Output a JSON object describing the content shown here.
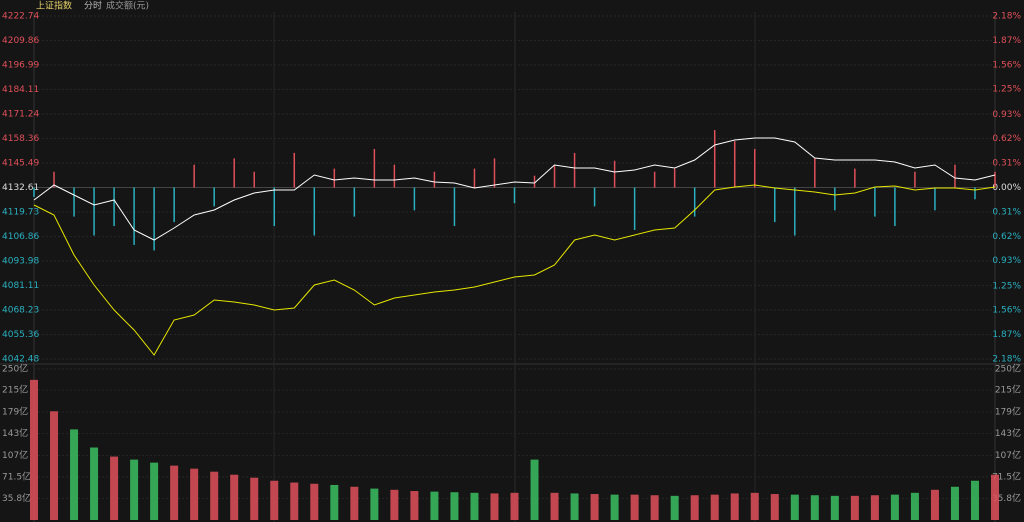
{
  "header": {
    "symbol": "上证指数",
    "period": "分时",
    "volume_label": "成交额(元)"
  },
  "chart_data": [
    {
      "type": "line",
      "ylim": [
        4042.48,
        4222.74
      ],
      "yticks": [
        4042.48,
        4055.36,
        4068.23,
        4081.11,
        4093.98,
        4106.86,
        4119.73,
        4132.61,
        4145.49,
        4158.36,
        4171.24,
        4184.11,
        4196.99,
        4209.86,
        4222.74
      ],
      "y2lim": [
        -2.18,
        2.18
      ],
      "y2ticks": [
        {
          "value": -2.18,
          "label": "2.18%"
        },
        {
          "value": -1.87,
          "label": "1.87%"
        },
        {
          "value": -1.56,
          "label": "1.56%"
        },
        {
          "value": -1.25,
          "label": "1.25%"
        },
        {
          "value": -0.93,
          "label": "0.93%"
        },
        {
          "value": -0.62,
          "label": "0.62%"
        },
        {
          "value": -0.31,
          "label": "0.31%"
        },
        {
          "value": 0,
          "label": "0.00%"
        },
        {
          "value": 0.31,
          "label": "0.31%"
        },
        {
          "value": 0.62,
          "label": "0.62%"
        },
        {
          "value": 0.93,
          "label": "0.93%"
        },
        {
          "value": 1.25,
          "label": "1.25%"
        },
        {
          "value": 1.56,
          "label": "1.56%"
        },
        {
          "value": 1.87,
          "label": "1.87%"
        },
        {
          "value": 2.18,
          "label": "2.18%"
        }
      ],
      "up_color": "#e0505a",
      "down_color": "#2ab0c0",
      "flat_color": "#dddddd",
      "series": [
        {
          "color": "#ffffff",
          "values": [
            4126.05,
            4133.93,
            4128.68,
            4123.42,
            4126.05,
            4110.29,
            4105.03,
            4111.34,
            4118.17,
            4120.8,
            4126.05,
            4129.73,
            4131.31,
            4131.31,
            4139.19,
            4136.56,
            4137.61,
            4136.56,
            4136.56,
            4137.61,
            4135.51,
            4134.98,
            4132.36,
            4133.93,
            4135.51,
            4134.98,
            4144.44,
            4142.87,
            4142.87,
            4140.76,
            4141.81,
            4144.44,
            4142.87,
            4147.07,
            4154.95,
            4157.58,
            4158.63,
            4158.63,
            4156.53,
            4148.12,
            4147.07,
            4147.07,
            4147.07,
            4146.02,
            4142.87,
            4144.44,
            4137.61,
            4136.56,
            4139.19
          ]
        },
        {
          "color": "#e6e600",
          "values": [
            4123.42,
            4118.17,
            4097.15,
            4081.38,
            4068.25,
            4057.74,
            4044.6,
            4062.99,
            4065.62,
            4073.5,
            4072.45,
            4070.87,
            4068.25,
            4069.3,
            4081.38,
            4084.01,
            4078.76,
            4070.87,
            4074.55,
            4076.13,
            4077.71,
            4078.76,
            4080.33,
            4082.96,
            4085.59,
            4086.64,
            4091.89,
            4105.03,
            4107.66,
            4105.03,
            4107.66,
            4110.29,
            4111.34,
            4120.8,
            4131.31,
            4132.88,
            4133.93,
            4132.36,
            4131.31,
            4130.25,
            4128.68,
            4129.73,
            4132.88,
            4133.41,
            4131.31,
            4132.36,
            4132.36,
            4131.31,
            4132.88
          ]
        },
        {
          "axis": "y2",
          "values": [
            -0.12,
            0.2,
            -0.37,
            -0.61,
            -0.49,
            -0.73,
            -0.8,
            -0.44,
            0.29,
            -0.24,
            0.37,
            0.2,
            -0.49,
            0.44,
            -0.61,
            0.24,
            -0.37,
            0.49,
            0.29,
            -0.29,
            0.2,
            -0.49,
            0.24,
            0.37,
            -0.2,
            0.15,
            0.29,
            0.44,
            -0.24,
            0.34,
            -0.54,
            0.2,
            0.24,
            -0.37,
            0.73,
            0.59,
            0.49,
            -0.44,
            -0.61,
            0.37,
            -0.29,
            0.24,
            -0.37,
            -0.49,
            0.2,
            -0.29,
            0.29,
            -0.15,
            0.2
          ]
        }
      ]
    },
    {
      "type": "bar",
      "ylim": [
        0,
        250
      ],
      "yticks": [
        {
          "value": 35.8,
          "label": "35.8亿"
        },
        {
          "value": 71.5,
          "label": "71.5亿"
        },
        {
          "value": 107,
          "label": "107亿"
        },
        {
          "value": 143,
          "label": "143亿"
        },
        {
          "value": 179,
          "label": "179亿"
        },
        {
          "value": 215,
          "label": "215亿"
        },
        {
          "value": 250,
          "label": "250亿"
        }
      ],
      "up_color": "#e0505a",
      "down_color": "#3ac060",
      "values": [
        232,
        180,
        150,
        120,
        105,
        100,
        95,
        90,
        85,
        80,
        75,
        70,
        65,
        62,
        60,
        58,
        55,
        52,
        50,
        48,
        47,
        46,
        45,
        44,
        45,
        100,
        45,
        44,
        43,
        42,
        42,
        41,
        40,
        41,
        42,
        44,
        45,
        43,
        42,
        41,
        40,
        40,
        41,
        42,
        45,
        50,
        55,
        65,
        75
      ]
    }
  ]
}
